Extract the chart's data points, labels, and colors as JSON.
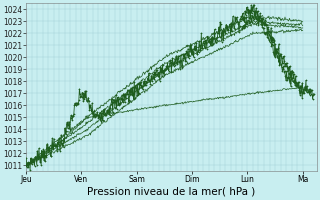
{
  "bg_color": "#c8eef0",
  "grid_major_color": "#9ecdd4",
  "grid_minor_color": "#b8e0e4",
  "line_color": "#1e5c1e",
  "xlabel": "Pression niveau de la mer( hPa )",
  "xlabel_fontsize": 7.5,
  "yticks": [
    1011,
    1012,
    1013,
    1014,
    1015,
    1016,
    1017,
    1018,
    1019,
    1020,
    1021,
    1022,
    1023,
    1024
  ],
  "xtick_labels": [
    "Jeu",
    "Ven",
    "Sam",
    "Dim",
    "Lun",
    "Ma"
  ],
  "xtick_positions": [
    0.0,
    0.2,
    0.4,
    0.6,
    0.8,
    1.0
  ],
  "ylim": [
    1010.5,
    1024.5
  ],
  "xlim": [
    0.0,
    1.05
  ],
  "tick_fontsize": 5.5
}
